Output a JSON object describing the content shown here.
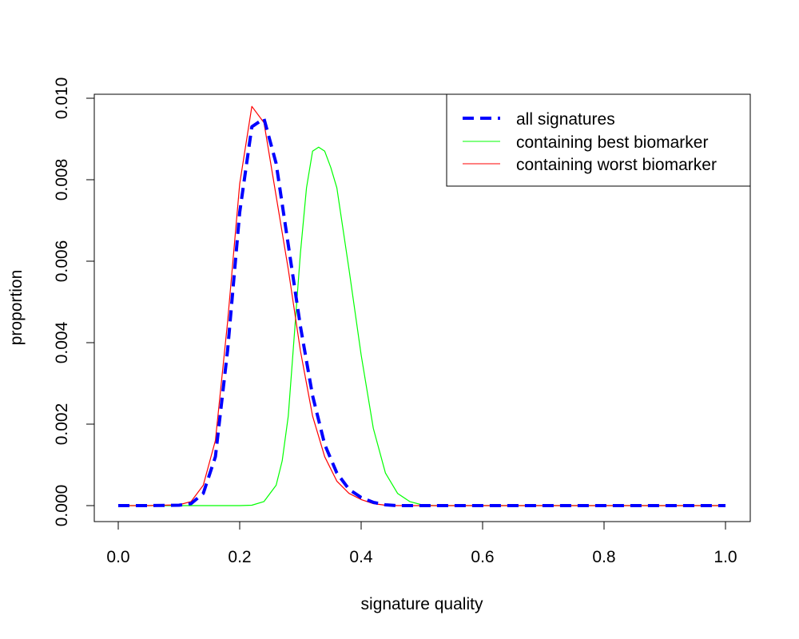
{
  "chart_data": {
    "type": "line",
    "title": "",
    "xlabel": "signature quality",
    "ylabel": "proportion",
    "xlim": [
      0.0,
      1.0
    ],
    "ylim": [
      0.0,
      0.01
    ],
    "xticks": [
      "0.0",
      "0.2",
      "0.4",
      "0.6",
      "0.8",
      "1.0"
    ],
    "yticks": [
      "0.000",
      "0.002",
      "0.004",
      "0.006",
      "0.008",
      "0.010"
    ],
    "grid": false,
    "legend_position": "top-right",
    "series": [
      {
        "name": "all signatures",
        "color": "#0000ff",
        "style": "dashed",
        "x": [
          0.0,
          0.05,
          0.1,
          0.12,
          0.14,
          0.16,
          0.18,
          0.2,
          0.22,
          0.24,
          0.26,
          0.28,
          0.3,
          0.32,
          0.34,
          0.36,
          0.38,
          0.4,
          0.42,
          0.44,
          0.46,
          0.5,
          0.6,
          0.7,
          0.8,
          0.9,
          1.0
        ],
        "y": [
          0.0,
          0.0,
          1e-05,
          5e-05,
          0.0003,
          0.0012,
          0.0038,
          0.0072,
          0.0093,
          0.0095,
          0.0084,
          0.0064,
          0.0044,
          0.0027,
          0.0015,
          0.0008,
          0.0004,
          0.0002,
          8e-05,
          2e-05,
          0.0,
          0.0,
          0.0,
          0.0,
          0.0,
          0.0,
          0.0
        ]
      },
      {
        "name": "containing best biomarker",
        "color": "#00ff00",
        "style": "solid",
        "x": [
          0.0,
          0.1,
          0.2,
          0.22,
          0.24,
          0.26,
          0.27,
          0.28,
          0.29,
          0.3,
          0.31,
          0.32,
          0.33,
          0.34,
          0.35,
          0.36,
          0.38,
          0.4,
          0.42,
          0.44,
          0.46,
          0.48,
          0.5,
          0.52,
          0.6,
          0.8,
          1.0
        ],
        "y": [
          0.0,
          0.0,
          0.0,
          1e-05,
          0.0001,
          0.0005,
          0.0011,
          0.0022,
          0.0042,
          0.0062,
          0.0078,
          0.0087,
          0.0088,
          0.0087,
          0.0083,
          0.0078,
          0.0058,
          0.0037,
          0.0019,
          0.0008,
          0.0003,
          0.0001,
          2e-05,
          0.0,
          0.0,
          0.0,
          0.0
        ]
      },
      {
        "name": "containing worst biomarker",
        "color": "#ff0000",
        "style": "solid",
        "x": [
          0.0,
          0.05,
          0.1,
          0.12,
          0.14,
          0.16,
          0.18,
          0.2,
          0.22,
          0.24,
          0.26,
          0.28,
          0.3,
          0.32,
          0.34,
          0.36,
          0.38,
          0.4,
          0.42,
          0.44,
          0.46,
          0.5,
          0.6,
          0.7,
          0.8,
          0.9,
          1.0
        ],
        "y": [
          0.0,
          0.0,
          2e-05,
          0.0001,
          0.0005,
          0.0016,
          0.0045,
          0.0079,
          0.0098,
          0.0094,
          0.0076,
          0.0058,
          0.0038,
          0.0022,
          0.0012,
          0.0006,
          0.0003,
          0.00015,
          5e-05,
          1e-05,
          0.0,
          0.0,
          0.0,
          0.0,
          0.0,
          0.0,
          0.0
        ]
      }
    ]
  }
}
